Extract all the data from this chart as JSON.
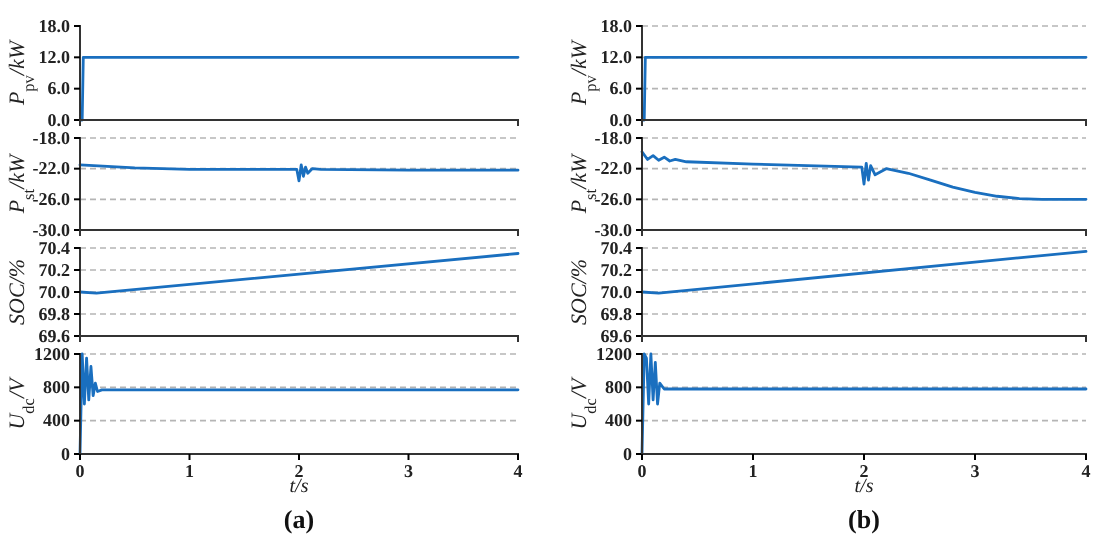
{
  "chart_data": [
    {
      "type": "line",
      "ylabel": "P$_{pv}$/kW",
      "xlim": [
        0,
        4
      ],
      "ylim": [
        0,
        18
      ],
      "yticks": [
        {
          "value": 0,
          "label": "0.0"
        },
        {
          "value": 6,
          "label": "6.0"
        },
        {
          "value": 12,
          "label": "12.0"
        },
        {
          "value": 18,
          "label": "18.0"
        }
      ],
      "grid": false,
      "tick_labels": "y",
      "series": [
        {
          "color": "#1a6fbf",
          "x": [
            0,
            0.02,
            0.03,
            4
          ],
          "values": [
            0,
            0,
            12,
            12
          ]
        }
      ]
    },
    {
      "type": "line",
      "ylabel": "P$_{st}$/kW",
      "xlim": [
        0,
        4
      ],
      "ylim": [
        -30,
        -18
      ],
      "yticks": [
        {
          "value": -30,
          "label": "-30.0"
        },
        {
          "value": -26,
          "label": "-26.0"
        },
        {
          "value": -22,
          "label": "-22.0"
        },
        {
          "value": -18,
          "label": "-18.0"
        }
      ],
      "grid": "y",
      "tick_labels": "y",
      "series": [
        {
          "color": "#1a6fbf",
          "x": [
            0,
            0.5,
            1,
            1.98,
            2.0,
            2.02,
            2.04,
            2.06,
            2.08,
            2.12,
            2.2,
            3,
            4
          ],
          "values": [
            -21.5,
            -21.9,
            -22.1,
            -22.1,
            -23.6,
            -21.5,
            -23,
            -21.8,
            -22.6,
            -22,
            -22.1,
            -22.2,
            -22.2
          ]
        }
      ]
    },
    {
      "type": "line",
      "ylabel": "SOC/%",
      "xlim": [
        0,
        4
      ],
      "ylim": [
        69.6,
        70.4
      ],
      "yticks": [
        {
          "value": 69.6,
          "label": "69.6"
        },
        {
          "value": 69.8,
          "label": "69.8"
        },
        {
          "value": 70,
          "label": "70.0"
        },
        {
          "value": 70.2,
          "label": "70.2"
        },
        {
          "value": 70.4,
          "label": "70.4"
        }
      ],
      "grid": "y",
      "tick_labels": "y",
      "series": [
        {
          "color": "#1a6fbf",
          "x": [
            0,
            0.15,
            4
          ],
          "values": [
            70.0,
            69.99,
            70.35
          ]
        }
      ]
    },
    {
      "type": "line",
      "ylabel": "U$_{dc}$/V",
      "xlabel": "t/s",
      "annotations": [
        "(a)"
      ],
      "xlim": [
        0,
        4
      ],
      "ylim": [
        0,
        1200
      ],
      "yticks": [
        0,
        400,
        800,
        1200
      ],
      "xticks": [
        0,
        1,
        2,
        3,
        4
      ],
      "grid": "y",
      "series": [
        {
          "color": "#1a6fbf",
          "x": [
            0,
            0.02,
            0.04,
            0.06,
            0.08,
            0.1,
            0.12,
            0.14,
            0.16,
            0.2,
            4
          ],
          "values": [
            0,
            1200,
            600,
            1150,
            650,
            1050,
            700,
            850,
            750,
            770,
            770
          ]
        }
      ]
    },
    {
      "type": "line",
      "ylabel": "P$_{pv}$/kW",
      "xlim": [
        0,
        4
      ],
      "ylim": [
        0,
        18
      ],
      "yticks": [
        {
          "value": 0,
          "label": "0.0"
        },
        {
          "value": 6,
          "label": "6.0"
        },
        {
          "value": 12,
          "label": "12.0"
        },
        {
          "value": 18,
          "label": "18.0"
        }
      ],
      "grid": "y",
      "tick_labels": "y",
      "series": [
        {
          "color": "#1a6fbf",
          "x": [
            0,
            0.02,
            0.03,
            4
          ],
          "values": [
            0,
            0,
            12,
            12
          ]
        }
      ]
    },
    {
      "type": "line",
      "ylabel": "P$_{st}$/kW",
      "xlim": [
        0,
        4
      ],
      "ylim": [
        -30,
        -18
      ],
      "yticks": [
        {
          "value": -30,
          "label": "-30.0"
        },
        {
          "value": -26,
          "label": "-26.0"
        },
        {
          "value": -22,
          "label": "-22.0"
        },
        {
          "value": -18,
          "label": "-18.0"
        }
      ],
      "grid": "y",
      "tick_labels": "y",
      "series": [
        {
          "color": "#1a6fbf",
          "x": [
            0,
            0.05,
            0.1,
            0.15,
            0.2,
            0.25,
            0.3,
            0.4,
            1,
            1.98,
            2.0,
            2.02,
            2.04,
            2.06,
            2.1,
            2.2,
            2.4,
            2.6,
            2.8,
            3,
            3.2,
            3.4,
            3.6,
            4
          ],
          "values": [
            -19.8,
            -20.8,
            -20.3,
            -20.9,
            -20.5,
            -21,
            -20.8,
            -21.1,
            -21.4,
            -21.8,
            -24,
            -21.3,
            -23.5,
            -21.6,
            -22.8,
            -22,
            -22.6,
            -23.5,
            -24.4,
            -25.1,
            -25.6,
            -25.9,
            -26,
            -26
          ]
        }
      ]
    },
    {
      "type": "line",
      "ylabel": "SOC/%",
      "xlim": [
        0,
        4
      ],
      "ylim": [
        69.6,
        70.4
      ],
      "yticks": [
        {
          "value": 69.6,
          "label": "69.6"
        },
        {
          "value": 69.8,
          "label": "69.8"
        },
        {
          "value": 70,
          "label": "70.0"
        },
        {
          "value": 70.2,
          "label": "70.2"
        },
        {
          "value": 70.4,
          "label": "70.4"
        }
      ],
      "grid": "y",
      "tick_labels": "y",
      "series": [
        {
          "color": "#1a6fbf",
          "x": [
            0,
            0.15,
            4
          ],
          "values": [
            70.0,
            69.99,
            70.37
          ]
        }
      ]
    },
    {
      "type": "line",
      "ylabel": "U$_{dc}$/V",
      "xlabel": "t/s",
      "annotations": [
        "(b)"
      ],
      "xlim": [
        0,
        4
      ],
      "ylim": [
        0,
        1200
      ],
      "yticks": [
        0,
        400,
        800,
        1200
      ],
      "xticks": [
        0,
        1,
        2,
        3,
        4
      ],
      "grid": "y",
      "series": [
        {
          "color": "#1a6fbf",
          "x": [
            0,
            0.02,
            0.04,
            0.06,
            0.08,
            0.1,
            0.12,
            0.14,
            0.16,
            0.2,
            4
          ],
          "values": [
            0,
            1200,
            1150,
            600,
            1200,
            650,
            1100,
            600,
            850,
            780,
            780
          ]
        }
      ]
    }
  ]
}
